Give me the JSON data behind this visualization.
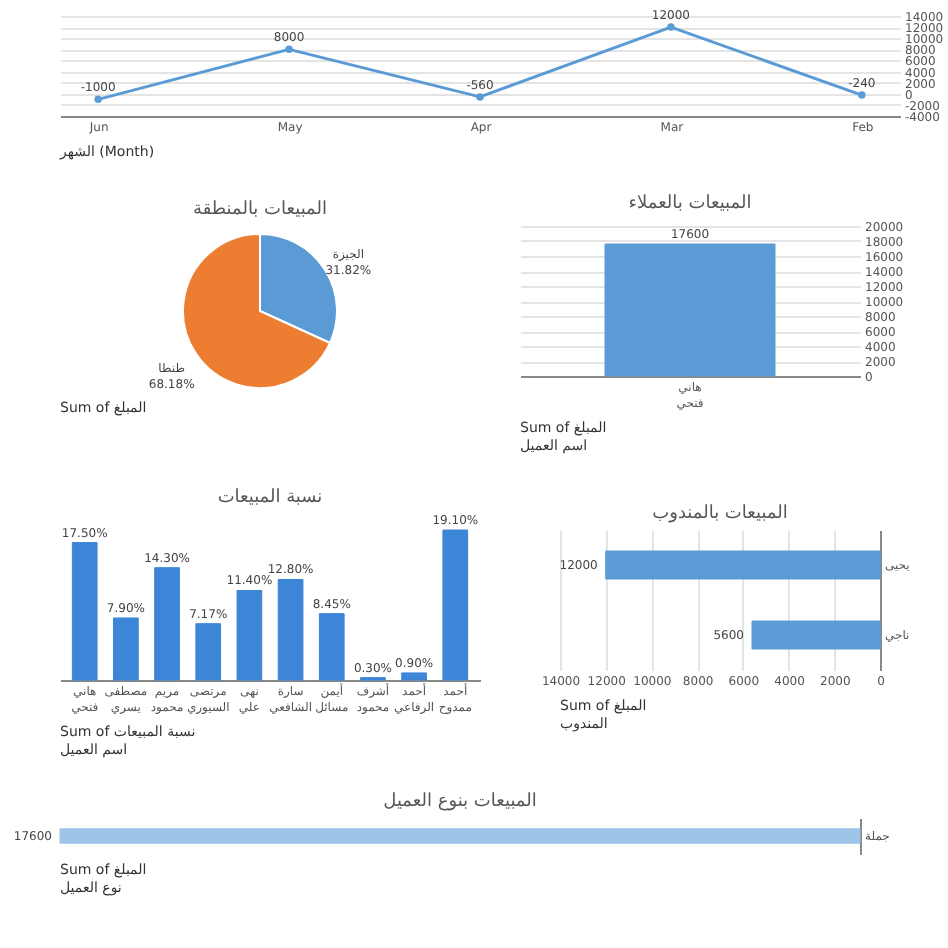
{
  "chart_data": [
    {
      "type": "line",
      "categories": [
        "Jun",
        "May",
        "Apr",
        "Mar",
        "Feb"
      ],
      "values": [
        -1000,
        8000,
        -560,
        12000,
        -240
      ],
      "color": "#5b9bd5",
      "ylim": [
        -4000,
        14000
      ],
      "yticks": [
        -4000,
        -2000,
        0,
        2000,
        4000,
        6000,
        8000,
        10000,
        12000,
        14000
      ],
      "grid": "y",
      "marker": "circle",
      "data_labels": true,
      "annotations": [
        "الشهر (Month)"
      ]
    },
    {
      "type": "pie",
      "title": "المبيعات بالمنطقة",
      "categories": [
        "الجيزة",
        "طنطا"
      ],
      "values": [
        31.82,
        68.18
      ],
      "colors": [
        "#5b9bd5",
        "#ed7d31"
      ],
      "value_labels": [
        "31.82%",
        "68.18%"
      ],
      "annotations": [
        "Sum of المبلغ"
      ]
    },
    {
      "type": "bar",
      "title": "المبيعات بالعملاء",
      "categories": [
        "هاني فتحي"
      ],
      "values": [
        17600
      ],
      "color": "#5b9bd5",
      "ylim": [
        0,
        20000
      ],
      "yticks": [
        0,
        2000,
        4000,
        6000,
        8000,
        10000,
        12000,
        14000,
        16000,
        18000,
        20000
      ],
      "grid": "y",
      "data_labels": true,
      "annotations": [
        "Sum of المبلغ",
        "اسم العميل"
      ]
    },
    {
      "type": "bar",
      "title": "نسبة المبيعات",
      "categories": [
        "هاني فتحي",
        "مصطفى يسري",
        "مريم محمود",
        "مرتضى السيوري",
        "نهى علي",
        "سارة الشافعي",
        "أيمن مسائل",
        "أشرف محمود",
        "أحمد الرفاعي",
        "أحمد ممدوح"
      ],
      "values": [
        17.5,
        7.9,
        14.3,
        7.17,
        11.4,
        12.8,
        8.45,
        0.3,
        0.9,
        19.1
      ],
      "color": "#3d85d6",
      "value_labels": [
        "17.50%",
        "7.90%",
        "14.30%",
        "7.17%",
        "11.40%",
        "12.80%",
        "8.45%",
        "0.30%",
        "0.90%",
        "19.10%"
      ],
      "annotations": [
        "Sum of نسبة المبيعات",
        "اسم العميل"
      ]
    },
    {
      "type": "bar",
      "title": "المبيعات بالمندوب",
      "orientation": "horizontal",
      "categories": [
        "يحيى",
        "ناجي"
      ],
      "values": [
        12000,
        5600
      ],
      "color": "#5b9bd5",
      "xlim": [
        14000,
        0
      ],
      "xticks": [
        14000,
        12000,
        10000,
        8000,
        6000,
        4000,
        2000,
        0
      ],
      "grid": "x",
      "data_labels": true,
      "annotations": [
        "Sum of المبلغ",
        "المندوب"
      ]
    },
    {
      "type": "bar",
      "title": "المبيعات بنوع العميل",
      "orientation": "horizontal",
      "categories": [
        "جملة"
      ],
      "values": [
        17600
      ],
      "color": "#9dc3e6",
      "data_labels": true,
      "annotations": [
        "Sum of المبلغ",
        "نوع العميل"
      ]
    }
  ]
}
